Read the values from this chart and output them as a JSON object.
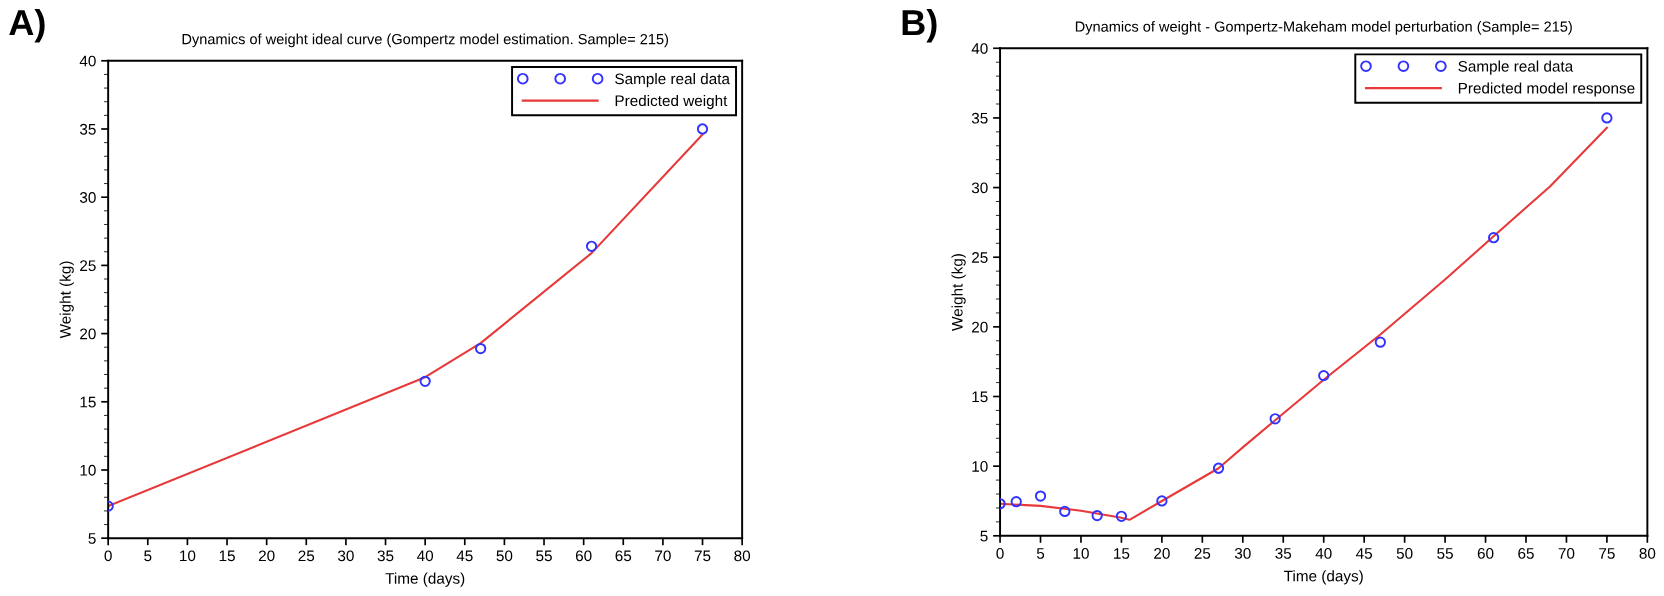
{
  "chart_data": [
    {
      "type": "scatter",
      "title": "Dynamics of weight ideal curve (Gompertz model estimation. Sample= 215)",
      "xlabel": "Time (days)",
      "ylabel": "Weight (kg)",
      "annotations": [
        "A)"
      ],
      "xlim": [
        0,
        80
      ],
      "xticks": [
        0,
        5,
        10,
        15,
        20,
        25,
        30,
        35,
        40,
        45,
        50,
        55,
        60,
        65,
        70,
        75,
        80
      ],
      "ylim": [
        5,
        40
      ],
      "yticks": [
        5,
        10,
        15,
        20,
        25,
        30,
        35,
        40
      ],
      "grid": false,
      "legend": "top right",
      "series": [
        {
          "name": "Sample real data",
          "color": "#3333ff",
          "marker": "circle",
          "x": [
            0,
            40,
            47,
            61,
            75
          ],
          "values": [
            7.35,
            16.5,
            18.9,
            26.4,
            35.0
          ]
        },
        {
          "name": "Predicted weight",
          "type": "line",
          "color": "#e8393a",
          "marker": "none",
          "line_style": "solid",
          "x": [
            0,
            40,
            47,
            61,
            75
          ],
          "values": [
            7.35,
            16.8,
            19.3,
            25.9,
            34.6
          ]
        }
      ]
    },
    {
      "type": "scatter",
      "title": "Dynamics of weight - Gompertz-Makeham model perturbation (Sample= 215)",
      "xlabel": "Time (days)",
      "ylabel": "Weight (kg)",
      "annotations": [
        "B)"
      ],
      "xlim": [
        0,
        80
      ],
      "xticks": [
        0,
        5,
        10,
        15,
        20,
        25,
        30,
        35,
        40,
        45,
        50,
        55,
        60,
        65,
        70,
        75,
        80
      ],
      "ylim": [
        5,
        40
      ],
      "yticks": [
        5,
        10,
        15,
        20,
        25,
        30,
        35,
        40
      ],
      "grid": false,
      "legend": "top right",
      "series": [
        {
          "name": "Sample real data",
          "color": "#3333ff",
          "marker": "circle",
          "x": [
            0,
            2,
            5,
            8,
            12,
            15,
            20,
            27,
            34,
            40,
            47,
            61,
            75
          ],
          "values": [
            7.3,
            7.45,
            7.85,
            6.75,
            6.45,
            6.4,
            7.5,
            9.85,
            13.4,
            16.5,
            18.9,
            26.4,
            35.0
          ]
        },
        {
          "name": "Predicted model response",
          "type": "line",
          "color": "#e8393a",
          "marker": "none",
          "line_style": "solid",
          "x": [
            0,
            5,
            10,
            15,
            16,
            20,
            27,
            30,
            34,
            40,
            47,
            55,
            61,
            68,
            75
          ],
          "values": [
            7.3,
            7.15,
            6.8,
            6.3,
            6.15,
            7.5,
            9.85,
            11.35,
            13.3,
            16.2,
            19.45,
            23.4,
            26.5,
            30.1,
            34.3
          ]
        }
      ]
    }
  ]
}
